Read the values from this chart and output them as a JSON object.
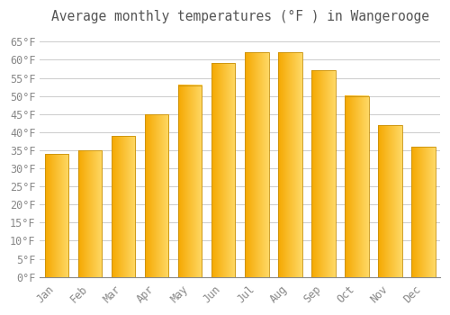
{
  "title": "Average monthly temperatures (°F ) in Wangerooge",
  "months": [
    "Jan",
    "Feb",
    "Mar",
    "Apr",
    "May",
    "Jun",
    "Jul",
    "Aug",
    "Sep",
    "Oct",
    "Nov",
    "Dec"
  ],
  "values": [
    34,
    35,
    39,
    45,
    53,
    59,
    62,
    62,
    57,
    50,
    42,
    36
  ],
  "bar_color_left": "#F5A800",
  "bar_color_right": "#FFD966",
  "bar_edge_color": "#C8900A",
  "background_color": "#FFFFFF",
  "grid_color": "#CCCCCC",
  "text_color": "#888888",
  "ylim": [
    0,
    68
  ],
  "yticks": [
    0,
    5,
    10,
    15,
    20,
    25,
    30,
    35,
    40,
    45,
    50,
    55,
    60,
    65
  ],
  "title_fontsize": 10.5,
  "tick_fontsize": 8.5,
  "bar_width": 0.72
}
